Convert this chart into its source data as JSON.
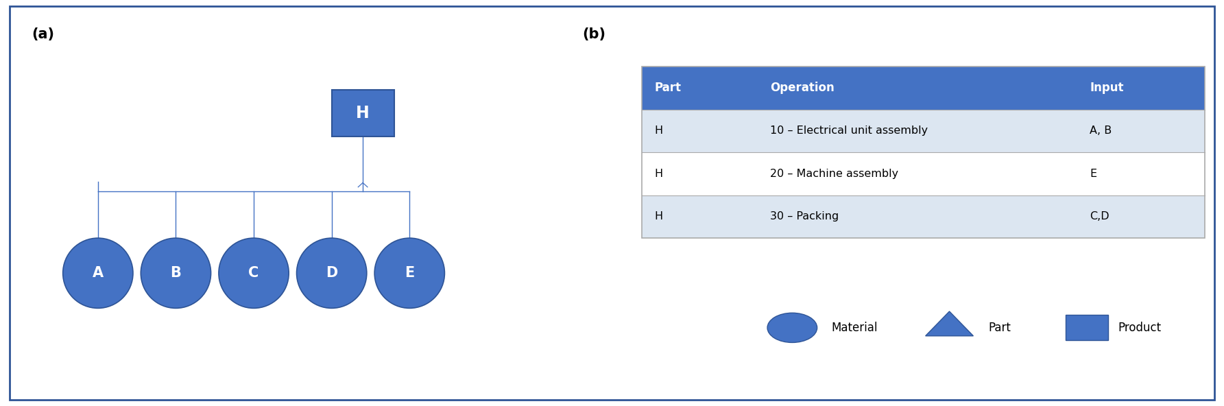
{
  "fig_width": 17.85,
  "fig_height": 5.92,
  "bg_color": "#ffffff",
  "border_color": "#2e5496",
  "panel_a_label": "(a)",
  "panel_b_label": "(b)",
  "circle_color": "#4472c4",
  "circle_edge_color": "#2e5496",
  "square_color": "#4472c4",
  "square_edge_color": "#2e5496",
  "circle_labels": [
    "A",
    "B",
    "C",
    "D",
    "E"
  ],
  "square_label": "H",
  "text_color": "#ffffff",
  "line_color": "#4472c4",
  "table_header_color": "#4472c4",
  "table_row_colors": [
    "#dce6f1",
    "#ffffff",
    "#dce6f1"
  ],
  "table_headers": [
    "Part",
    "Operation",
    "Input"
  ],
  "table_rows": [
    [
      "H",
      "10 – Electrical unit assembly",
      "A, B"
    ],
    [
      "H",
      "20 – Machine assembly",
      "E"
    ],
    [
      "H",
      "30 – Packing",
      "C,D"
    ]
  ],
  "legend_items": [
    "Material",
    "Part",
    "Product"
  ],
  "legend_circle_color": "#4472c4",
  "legend_triangle_color": "#4472c4",
  "legend_square_color": "#4472c4"
}
